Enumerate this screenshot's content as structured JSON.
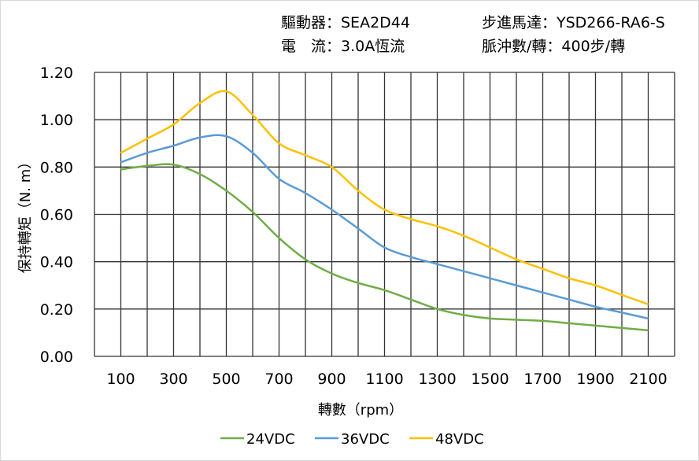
{
  "header": {
    "driver": "驅動器：SEA2D44",
    "motor": "步進馬達：YSD266-RA6-S",
    "current": "電　流：3.0A恆流",
    "pulses": "脈沖數/轉：400步/轉"
  },
  "chart_data": {
    "type": "line",
    "title": "",
    "xlabel": "轉數（rpm）",
    "ylabel": "保持轉矩（N. m）",
    "xlim": [
      0,
      2200
    ],
    "ylim": [
      0,
      1.2
    ],
    "grid": true,
    "legend_position": "bottom",
    "x_ticks": [
      100,
      300,
      500,
      700,
      900,
      1100,
      1300,
      1500,
      1700,
      1900,
      2100
    ],
    "y_ticks": [
      "0.00",
      "0.20",
      "0.40",
      "0.60",
      "0.80",
      "1.00",
      "1.20"
    ],
    "x": [
      100,
      200,
      300,
      400,
      500,
      600,
      700,
      800,
      900,
      1000,
      1100,
      1200,
      1300,
      1400,
      1500,
      1600,
      1700,
      1800,
      1900,
      2000,
      2100
    ],
    "series": [
      {
        "name": "24VDC",
        "color": "#70ad47",
        "values": [
          0.79,
          0.805,
          0.81,
          0.77,
          0.7,
          0.61,
          0.5,
          0.41,
          0.35,
          0.31,
          0.28,
          0.24,
          0.2,
          0.175,
          0.16,
          0.155,
          0.15,
          0.14,
          0.13,
          0.12,
          0.11
        ]
      },
      {
        "name": "36VDC",
        "color": "#5b9bd5",
        "values": [
          0.82,
          0.86,
          0.89,
          0.925,
          0.93,
          0.86,
          0.75,
          0.69,
          0.62,
          0.54,
          0.46,
          0.42,
          0.39,
          0.36,
          0.33,
          0.3,
          0.27,
          0.24,
          0.21,
          0.185,
          0.16
        ]
      },
      {
        "name": "48VDC",
        "color": "#ffc000",
        "values": [
          0.86,
          0.92,
          0.98,
          1.07,
          1.12,
          1.02,
          0.9,
          0.85,
          0.8,
          0.7,
          0.62,
          0.58,
          0.55,
          0.51,
          0.46,
          0.41,
          0.37,
          0.33,
          0.3,
          0.26,
          0.22
        ]
      }
    ]
  }
}
